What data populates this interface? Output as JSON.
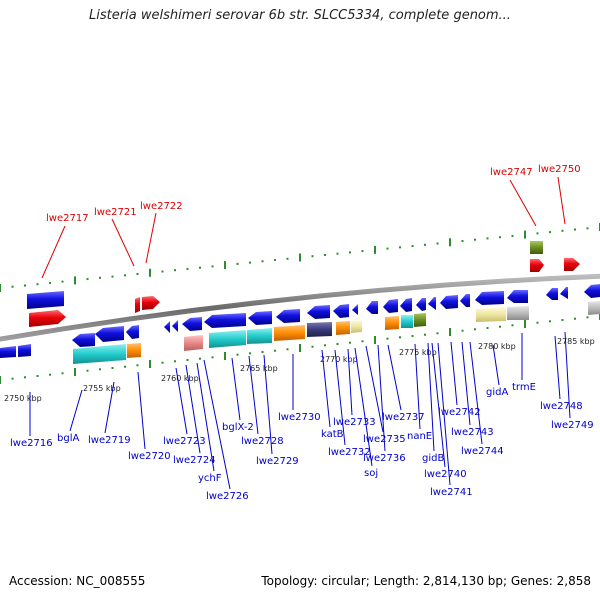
{
  "title": "Listeria welshimeri serovar 6b str. SLCC5334, complete genom...",
  "footer": {
    "accession": "Accession: NC_008555",
    "topology": "Topology: circular; Length: 2,814,130 bp; Genes: 2,858"
  },
  "ticks": [
    "2750 kbp",
    "2755 kbp",
    "2760 kbp",
    "2765 kbp",
    "2770 kbp",
    "2775 kbp",
    "2780 kbp",
    "2785 kbp"
  ],
  "gene_labels_red": [
    "lwe2717",
    "lwe2721",
    "lwe2722",
    "lwe2747",
    "lwe2750"
  ],
  "gene_labels_blue": [
    "lwe2716",
    "bglA",
    "lwe2719",
    "lwe2720",
    "lwe2723",
    "lwe2724",
    "ychF",
    "lwe2726",
    "bglX-2",
    "lwe2728",
    "lwe2729",
    "lwe2730",
    "katB",
    "lwe2732",
    "lwe2733",
    "soj",
    "lwe2735",
    "lwe2736",
    "lwe2737",
    "nanE",
    "gidB",
    "lwe2740",
    "lwe2741",
    "lwe2742",
    "lwe2743",
    "lwe2744",
    "gidA",
    "trmE",
    "lwe2748",
    "lwe2749"
  ],
  "colors": {
    "forward_red": "#e8000b",
    "reverse_blue": "#1010e0",
    "cyan": "#22cccc",
    "orange": "#ff8c00",
    "navy": "#3a3a7a",
    "pink": "#e88888",
    "khaki": "#eee6a0",
    "grey": "#bbbbbb",
    "olive": "#6b8e23",
    "label_red": "#dd0000",
    "label_blue": "#0000cc",
    "dots": "#2e8b2e"
  }
}
